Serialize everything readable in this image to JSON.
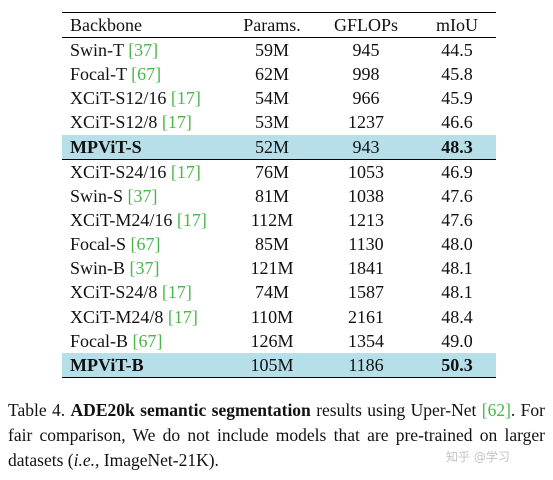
{
  "table": {
    "headers": [
      "Backbone",
      "Params.",
      "GFLOPs",
      "mIoU"
    ],
    "rows": [
      {
        "name": "Swin-T ",
        "ref": "[37]",
        "params": "59M",
        "gflops": "945",
        "miou": "44.5",
        "highlight": false
      },
      {
        "name": "Focal-T ",
        "ref": "[67]",
        "params": "62M",
        "gflops": "998",
        "miou": "45.8",
        "highlight": false
      },
      {
        "name": "XCiT-S12/16 ",
        "ref": "[17]",
        "params": "54M",
        "gflops": "966",
        "miou": "45.9",
        "highlight": false
      },
      {
        "name": "XCiT-S12/8 ",
        "ref": "[17]",
        "params": "53M",
        "gflops": "1237",
        "miou": "46.6",
        "highlight": false
      },
      {
        "name": "MPViT-S",
        "ref": "",
        "params": "52M",
        "gflops": "943",
        "miou": "48.3",
        "highlight": true
      },
      {
        "name": "XCiT-S24/16 ",
        "ref": "[17]",
        "params": "76M",
        "gflops": "1053",
        "miou": "46.9",
        "highlight": false
      },
      {
        "name": "Swin-S ",
        "ref": "[37]",
        "params": "81M",
        "gflops": "1038",
        "miou": "47.6",
        "highlight": false
      },
      {
        "name": "XCiT-M24/16 ",
        "ref": "[17]",
        "params": "112M",
        "gflops": "1213",
        "miou": "47.6",
        "highlight": false
      },
      {
        "name": "Focal-S ",
        "ref": "[67]",
        "params": "85M",
        "gflops": "1130",
        "miou": "48.0",
        "highlight": false
      },
      {
        "name": "Swin-B ",
        "ref": "[37]",
        "params": "121M",
        "gflops": "1841",
        "miou": "48.1",
        "highlight": false
      },
      {
        "name": "XCiT-S24/8 ",
        "ref": "[17]",
        "params": "74M",
        "gflops": "1587",
        "miou": "48.1",
        "highlight": false
      },
      {
        "name": "XCiT-M24/8 ",
        "ref": "[17]",
        "params": "110M",
        "gflops": "2161",
        "miou": "48.4",
        "highlight": false
      },
      {
        "name": "Focal-B ",
        "ref": "[67]",
        "params": "126M",
        "gflops": "1354",
        "miou": "49.0",
        "highlight": false
      },
      {
        "name": "MPViT-B",
        "ref": "",
        "params": "105M",
        "gflops": "1186",
        "miou": "50.3",
        "highlight": true
      }
    ]
  },
  "caption": {
    "label": "Table 4. ",
    "bold": "ADE20k semantic segmentation",
    "text1": " results using Uper-Net ",
    "ref": "[62]",
    "text2": ". For fair comparison, We do not include models that are pre-trained on larger datasets (",
    "italic": "i.e.,",
    "text3": " ImageNet-21K)."
  },
  "watermark": "知乎 @学习",
  "colors": {
    "highlight": "#b7dfe9",
    "ref": "#49b64a"
  }
}
